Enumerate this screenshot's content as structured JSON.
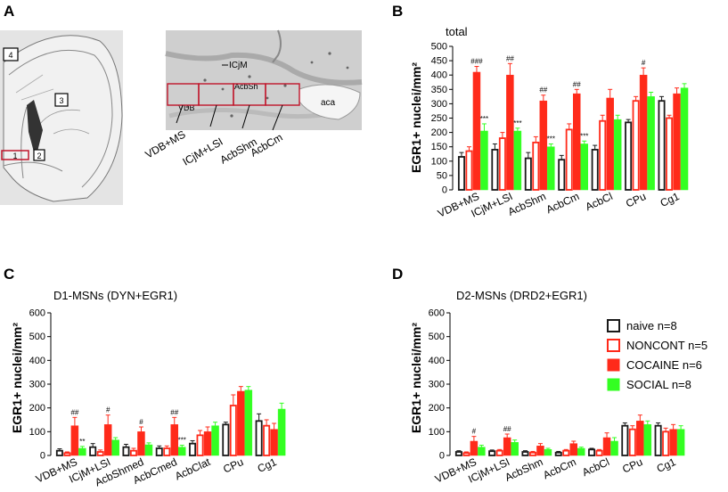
{
  "panels": {
    "A": "A",
    "B": "B",
    "C": "C",
    "D": "D"
  },
  "atlas": {
    "region_boxes": [
      "1",
      "2",
      "3",
      "4"
    ],
    "micrograph_labels": {
      "icjm": "ICjM",
      "acbsh": "AcbSh",
      "vdb": "VDB",
      "aca": "aca"
    },
    "callouts": [
      "VDB+MS",
      "ICjM+LSI",
      "AcbShm",
      "AcbCm"
    ]
  },
  "colors": {
    "naive": "#1a1a1a",
    "noncont": "#ff2a1a",
    "cocaine": "#ff2a1a",
    "social": "#33ff22",
    "text": "#000000"
  },
  "legend": [
    {
      "key": "naive",
      "label": "naive n=8",
      "style": "open-black"
    },
    {
      "key": "noncont",
      "label": "NONCONT n=5",
      "style": "open-red"
    },
    {
      "key": "cocaine",
      "label": "COCAINE n=6",
      "style": "filled-red"
    },
    {
      "key": "social",
      "label": "SOCIAL n=8",
      "style": "filled-green"
    }
  ],
  "chart_data": [
    {
      "panel": "B",
      "type": "bar",
      "title": "total",
      "xlabel": "",
      "ylabel": "EGR1+ nuclei/mm²",
      "ylim": [
        0,
        500
      ],
      "yticks": [
        0,
        50,
        100,
        150,
        200,
        250,
        300,
        350,
        400,
        450,
        500
      ],
      "categories": [
        "VDB+MS",
        "ICjM+LSI",
        "AcbShm",
        "AcbCm",
        "AcbCl",
        "CPu",
        "Cg1"
      ],
      "series": [
        {
          "name": "naive",
          "values": [
            115,
            140,
            110,
            105,
            140,
            235,
            310
          ],
          "errors": [
            15,
            20,
            20,
            15,
            15,
            10,
            15
          ]
        },
        {
          "name": "NONCONT",
          "values": [
            135,
            180,
            165,
            210,
            240,
            310,
            250
          ],
          "errors": [
            15,
            20,
            20,
            20,
            20,
            15,
            10
          ]
        },
        {
          "name": "COCAINE",
          "values": [
            410,
            400,
            310,
            335,
            320,
            400,
            335
          ],
          "errors": [
            20,
            40,
            20,
            15,
            30,
            25,
            20
          ]
        },
        {
          "name": "SOCIAL",
          "values": [
            205,
            205,
            150,
            160,
            245,
            325,
            355
          ],
          "errors": [
            25,
            10,
            10,
            10,
            15,
            15,
            15
          ]
        }
      ],
      "annotations": [
        {
          "category": "VDB+MS",
          "series": "COCAINE",
          "text": "###"
        },
        {
          "category": "VDB+MS",
          "series": "SOCIAL",
          "text": "***"
        },
        {
          "category": "ICjM+LSI",
          "series": "COCAINE",
          "text": "##"
        },
        {
          "category": "ICjM+LSI",
          "series": "SOCIAL",
          "text": "***"
        },
        {
          "category": "AcbShm",
          "series": "COCAINE",
          "text": "##"
        },
        {
          "category": "AcbShm",
          "series": "SOCIAL",
          "text": "***"
        },
        {
          "category": "AcbCm",
          "series": "COCAINE",
          "text": "##"
        },
        {
          "category": "AcbCm",
          "series": "SOCIAL",
          "text": "***"
        },
        {
          "category": "CPu",
          "series": "COCAINE",
          "text": "#"
        }
      ]
    },
    {
      "panel": "C",
      "type": "bar",
      "title": "D1-MSNs (DYN+EGR1)",
      "xlabel": "",
      "ylabel": "EGR1+ nuclei/mm²",
      "ylim": [
        0,
        600
      ],
      "yticks": [
        0,
        100,
        200,
        300,
        400,
        500,
        600
      ],
      "categories": [
        "VDB+MS",
        "ICjM+LSI",
        "AcbShmed",
        "AcbCmed",
        "AcbClat",
        "CPu",
        "Cg1"
      ],
      "series": [
        {
          "name": "naive",
          "values": [
            20,
            35,
            35,
            30,
            50,
            130,
            145
          ],
          "errors": [
            8,
            15,
            12,
            10,
            12,
            10,
            30
          ]
        },
        {
          "name": "NONCONT",
          "values": [
            10,
            15,
            20,
            30,
            85,
            210,
            125
          ],
          "errors": [
            5,
            8,
            10,
            10,
            20,
            45,
            25
          ]
        },
        {
          "name": "COCAINE",
          "values": [
            125,
            130,
            100,
            130,
            100,
            270,
            110
          ],
          "errors": [
            35,
            40,
            20,
            30,
            20,
            20,
            25
          ]
        },
        {
          "name": "SOCIAL",
          "values": [
            30,
            65,
            45,
            35,
            125,
            275,
            195
          ],
          "errors": [
            8,
            10,
            8,
            8,
            15,
            15,
            25
          ]
        }
      ],
      "annotations": [
        {
          "category": "VDB+MS",
          "series": "COCAINE",
          "text": "##"
        },
        {
          "category": "VDB+MS",
          "series": "SOCIAL",
          "text": "**"
        },
        {
          "category": "ICjM+LSI",
          "series": "COCAINE",
          "text": "#"
        },
        {
          "category": "AcbShmed",
          "series": "COCAINE",
          "text": "#"
        },
        {
          "category": "AcbCmed",
          "series": "COCAINE",
          "text": "##"
        },
        {
          "category": "AcbCmed",
          "series": "SOCIAL",
          "text": "***"
        }
      ]
    },
    {
      "panel": "D",
      "type": "bar",
      "title": "D2-MSNs (DRD2+EGR1)",
      "xlabel": "",
      "ylabel": "EGR1+ nuclei/mm²",
      "ylim": [
        0,
        600
      ],
      "yticks": [
        0,
        100,
        200,
        300,
        400,
        500,
        600
      ],
      "categories": [
        "VDB+MS",
        "ICjM+LSI",
        "AcbShm",
        "AcbCm",
        "AcbCl",
        "CPu",
        "Cg1"
      ],
      "series": [
        {
          "name": "naive",
          "values": [
            15,
            18,
            15,
            12,
            25,
            125,
            125
          ],
          "errors": [
            5,
            5,
            5,
            5,
            5,
            12,
            12
          ]
        },
        {
          "name": "NONCONT",
          "values": [
            10,
            20,
            12,
            20,
            20,
            110,
            100
          ],
          "errors": [
            5,
            5,
            5,
            5,
            5,
            15,
            15
          ]
        },
        {
          "name": "COCAINE",
          "values": [
            60,
            75,
            40,
            50,
            75,
            145,
            110
          ],
          "errors": [
            20,
            15,
            10,
            10,
            20,
            25,
            20
          ]
        },
        {
          "name": "SOCIAL",
          "values": [
            35,
            55,
            25,
            30,
            60,
            130,
            110
          ],
          "errors": [
            8,
            10,
            5,
            5,
            15,
            15,
            15
          ]
        }
      ],
      "annotations": [
        {
          "category": "VDB+MS",
          "series": "COCAINE",
          "text": "#"
        },
        {
          "category": "ICjM+LSI",
          "series": "COCAINE",
          "text": "##"
        }
      ]
    }
  ]
}
